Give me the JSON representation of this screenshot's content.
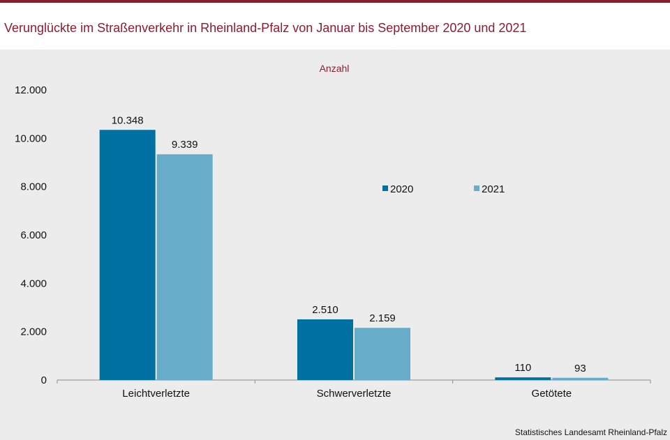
{
  "title": "Verunglückte im Straßenverkehr in Rheinland-Pfalz von Januar bis September 2020 und 2021",
  "source": "Statistisches Landesamt Rheinland-Pfalz",
  "colors": {
    "accent": "#8c1d30",
    "series_2020": "#0070a0",
    "series_2021": "#67acc9",
    "panel": "#ececec"
  },
  "chart_data": {
    "type": "bar",
    "unit_label": "Anzahl",
    "categories": [
      "Leichtverletzte",
      "Schwerverletzte",
      "Getötete"
    ],
    "series": [
      {
        "name": "2020",
        "values": [
          10348,
          2510,
          110
        ],
        "labels": [
          "10.348",
          "2.510",
          "110"
        ]
      },
      {
        "name": "2021",
        "values": [
          9339,
          2159,
          93
        ],
        "labels": [
          "9.339",
          "2.159",
          "93"
        ]
      }
    ],
    "ylim": [
      0,
      12000
    ],
    "yticks": [
      0,
      2000,
      4000,
      6000,
      8000,
      10000,
      12000
    ],
    "ytick_labels": [
      "0",
      "2.000",
      "4.000",
      "6.000",
      "8.000",
      "10.000",
      "12.000"
    ],
    "grid": false,
    "legend_position": "center-right"
  }
}
